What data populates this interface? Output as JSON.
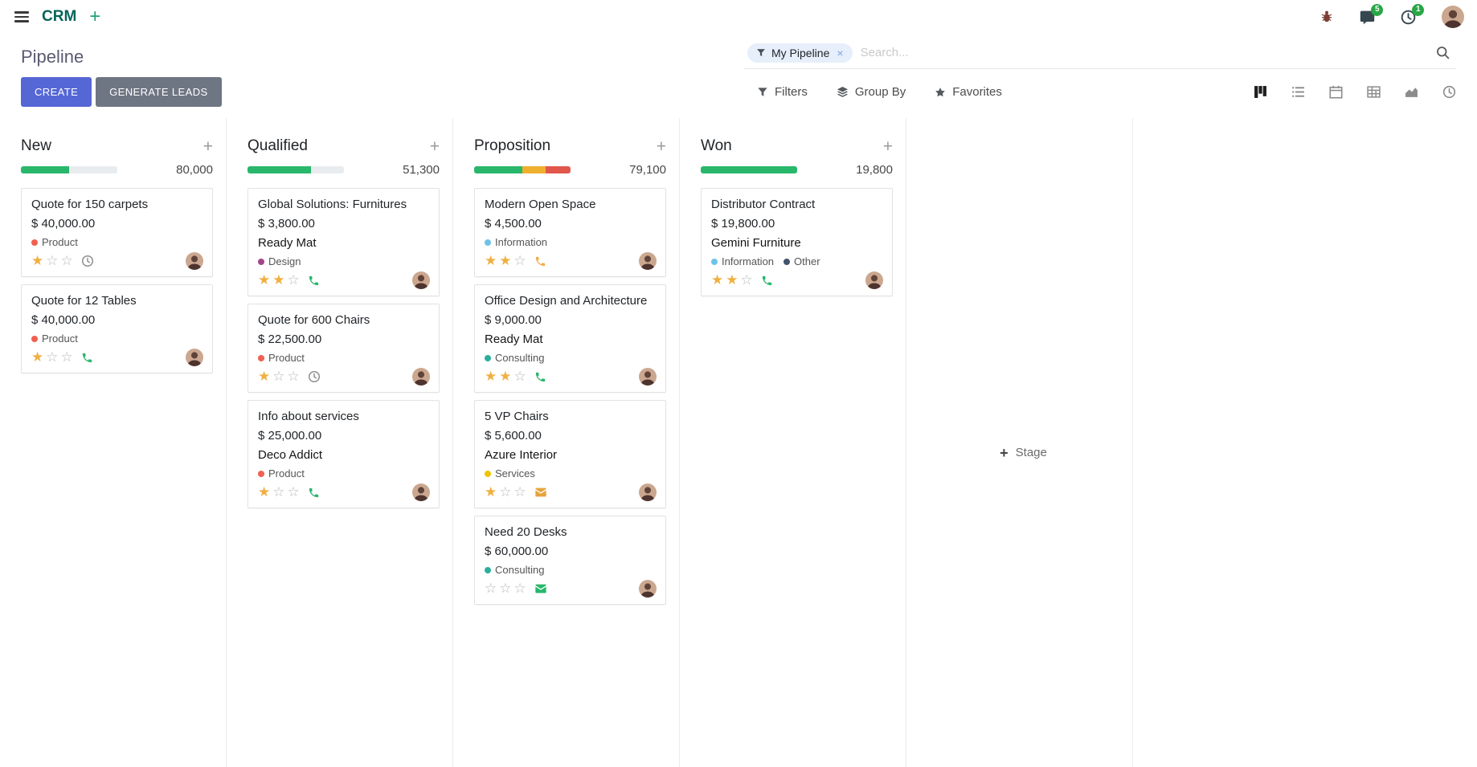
{
  "navbar": {
    "app_name": "CRM",
    "messages_badge": "5",
    "activities_badge": "1"
  },
  "icons": {
    "navbar_add": "+",
    "facet_remove": "×",
    "column_quick_add": "+",
    "add_stage_plus": "+"
  },
  "control_panel": {
    "title": "Pipeline",
    "search": {
      "facet": "My Pipeline",
      "placeholder": "Search..."
    },
    "create_label": "CREATE",
    "generate_leads_label": "GENERATE LEADS",
    "filters_label": "Filters",
    "group_by_label": "Group By",
    "favorites_label": "Favorites",
    "view_switcher": [
      "kanban",
      "list",
      "calendar",
      "pivot",
      "graph",
      "activity"
    ],
    "active_view": "kanban"
  },
  "kanban": {
    "add_stage_label": "Stage",
    "columns": [
      {
        "name": "New",
        "amount": "80,000",
        "progress": [
          {
            "color": "#28b76b",
            "pct": 50
          },
          {
            "color": "#e9ecef",
            "pct": 50
          }
        ],
        "cards": [
          {
            "title": "Quote for 150 carpets",
            "amount": "$ 40,000.00",
            "tags": [
              {
                "label": "Product",
                "color": "#f06050"
              }
            ],
            "stars": 1,
            "activity": {
              "type": "clock",
              "color": "#8f8f8f"
            }
          },
          {
            "title": "Quote for 12 Tables",
            "amount": "$ 40,000.00",
            "tags": [
              {
                "label": "Product",
                "color": "#f06050"
              }
            ],
            "stars": 1,
            "activity": {
              "type": "phone",
              "color": "#28b76b"
            }
          }
        ]
      },
      {
        "name": "Qualified",
        "amount": "51,300",
        "progress": [
          {
            "color": "#28b76b",
            "pct": 66
          },
          {
            "color": "#e9ecef",
            "pct": 34
          }
        ],
        "cards": [
          {
            "title": "Global Solutions: Furnitures",
            "amount": "$ 3,800.00",
            "partner": "Ready Mat",
            "tags": [
              {
                "label": "Design",
                "color": "#a24689"
              }
            ],
            "stars": 2,
            "activity": {
              "type": "phone",
              "color": "#28b76b"
            }
          },
          {
            "title": "Quote for 600 Chairs",
            "amount": "$ 22,500.00",
            "tags": [
              {
                "label": "Product",
                "color": "#f06050"
              }
            ],
            "stars": 1,
            "activity": {
              "type": "clock",
              "color": "#8f8f8f"
            }
          },
          {
            "title": "Info about services",
            "amount": "$ 25,000.00",
            "partner": "Deco Addict",
            "tags": [
              {
                "label": "Product",
                "color": "#f06050"
              }
            ],
            "stars": 1,
            "activity": {
              "type": "phone",
              "color": "#28b76b"
            }
          }
        ]
      },
      {
        "name": "Proposition",
        "amount": "79,100",
        "progress": [
          {
            "color": "#28b76b",
            "pct": 50
          },
          {
            "color": "#efb02e",
            "pct": 24
          },
          {
            "color": "#e2574c",
            "pct": 26
          }
        ],
        "cards": [
          {
            "title": "Modern Open Space",
            "amount": "$ 4,500.00",
            "tags": [
              {
                "label": "Information",
                "color": "#6ec2e8"
              }
            ],
            "stars": 2,
            "activity": {
              "type": "phone",
              "color": "#f0ad4e"
            }
          },
          {
            "title": "Office Design and Architecture",
            "amount": "$ 9,000.00",
            "partner": "Ready Mat",
            "tags": [
              {
                "label": "Consulting",
                "color": "#2aaf9c"
              }
            ],
            "stars": 2,
            "activity": {
              "type": "phone",
              "color": "#28b76b"
            }
          },
          {
            "title": "5 VP Chairs",
            "amount": "$ 5,600.00",
            "partner": "Azure Interior",
            "tags": [
              {
                "label": "Services",
                "color": "#efc300"
              }
            ],
            "stars": 1,
            "activity": {
              "type": "mail",
              "color": "#e8a33d"
            }
          },
          {
            "title": "Need 20 Desks",
            "amount": "$ 60,000.00",
            "tags": [
              {
                "label": "Consulting",
                "color": "#2aaf9c"
              }
            ],
            "stars": 0,
            "activity": {
              "type": "mail",
              "color": "#28b76b"
            }
          }
        ]
      },
      {
        "name": "Won",
        "amount": "19,800",
        "progress": [
          {
            "color": "#28b76b",
            "pct": 100
          }
        ],
        "cards": [
          {
            "title": "Distributor Contract",
            "amount": "$ 19,800.00",
            "partner": "Gemini Furniture",
            "tags": [
              {
                "label": "Information",
                "color": "#6ec2e8"
              },
              {
                "label": "Other",
                "color": "#43536b"
              }
            ],
            "stars": 2,
            "activity": {
              "type": "phone",
              "color": "#28b76b"
            }
          }
        ]
      }
    ]
  }
}
